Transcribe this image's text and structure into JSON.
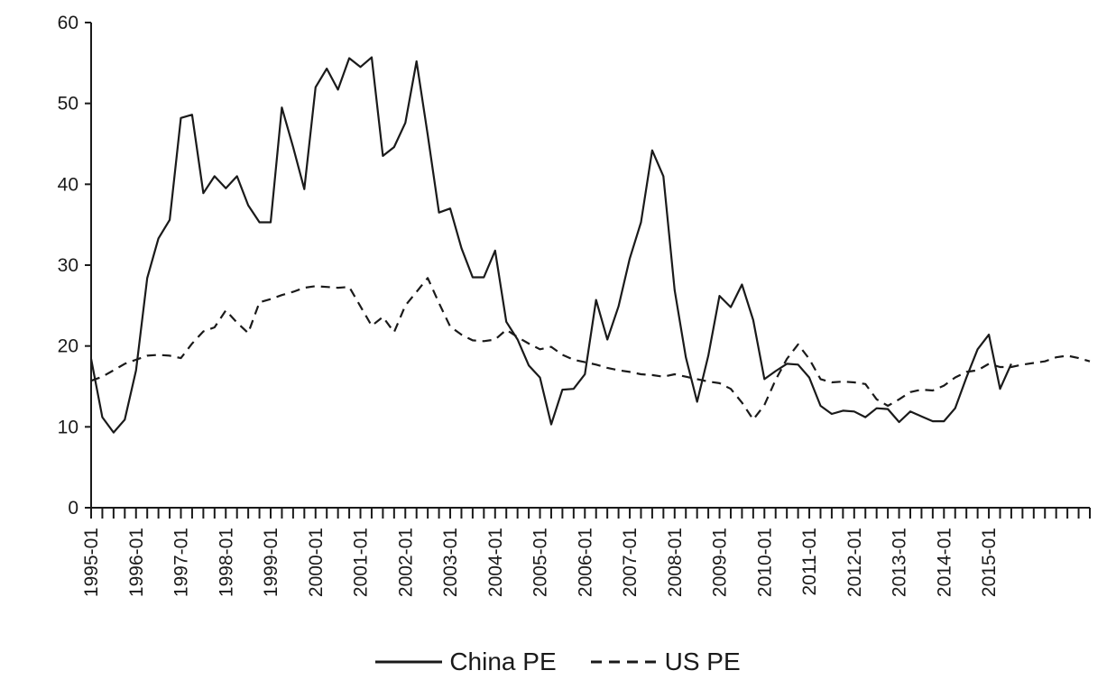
{
  "chart_data": {
    "type": "line",
    "title": "",
    "xlabel": "",
    "ylabel": "",
    "ylim": [
      0,
      60
    ],
    "yticks": [
      0,
      10,
      20,
      30,
      40,
      50,
      60
    ],
    "x_start": "1995-01",
    "x_step_months": 3,
    "xtick_labels": [
      "1995-01",
      "1996-01",
      "1997-01",
      "1998-01",
      "1999-01",
      "2000-01",
      "2001-01",
      "2002-01",
      "2003-01",
      "2004-01",
      "2005-01",
      "2006-01",
      "2007-01",
      "2008-01",
      "2009-01",
      "2010-01",
      "2011-01",
      "2012-01",
      "2013-01",
      "2014-01",
      "2015-01"
    ],
    "grid": false,
    "legend_position": "bottom",
    "series": [
      {
        "name": "China PE",
        "style": "solid",
        "color": "#1a1a1a",
        "values": [
          18.4,
          11.2,
          9.3,
          10.9,
          17.0,
          28.4,
          33.3,
          35.6,
          48.2,
          48.6,
          38.9,
          41.0,
          39.5,
          41.0,
          37.4,
          35.3,
          35.3,
          49.5,
          44.6,
          39.4,
          52.0,
          54.3,
          51.7,
          55.6,
          54.5,
          55.7,
          43.5,
          44.6,
          47.6,
          55.2,
          46.1,
          36.5,
          37.0,
          32.1,
          28.5,
          28.5,
          31.8,
          23.0,
          20.8,
          17.6,
          16.1,
          10.3,
          14.6,
          14.7,
          16.5,
          25.7,
          20.8,
          24.9,
          30.8,
          35.3,
          44.2,
          41.0,
          26.9,
          18.6,
          13.1,
          18.8,
          26.2,
          24.8,
          27.6,
          23.2,
          15.9,
          16.9,
          17.8,
          17.7,
          16.1,
          12.6,
          11.6,
          12.0,
          11.9,
          11.2,
          12.3,
          12.2,
          10.6,
          11.9,
          11.3,
          10.7,
          10.7,
          12.3,
          16.1,
          19.6,
          21.4,
          14.7,
          17.8
        ]
      },
      {
        "name": "US PE",
        "style": "dashed",
        "color": "#1a1a1a",
        "values": [
          15.7,
          16.2,
          17.0,
          17.8,
          18.3,
          18.8,
          18.9,
          18.8,
          18.5,
          20.3,
          21.8,
          22.3,
          24.4,
          22.9,
          21.6,
          25.4,
          25.8,
          26.3,
          26.7,
          27.2,
          27.4,
          27.3,
          27.2,
          27.3,
          24.9,
          22.5,
          23.6,
          21.7,
          25.0,
          26.7,
          28.4,
          25.3,
          22.4,
          21.4,
          20.7,
          20.6,
          20.8,
          22.0,
          21.1,
          20.3,
          19.6,
          19.9,
          18.9,
          18.3,
          18.0,
          17.7,
          17.3,
          17.0,
          16.8,
          16.5,
          16.4,
          16.2,
          16.5,
          16.2,
          15.9,
          15.6,
          15.4,
          14.7,
          13.0,
          10.9,
          12.7,
          15.8,
          18.4,
          20.2,
          18.4,
          15.9,
          15.5,
          15.6,
          15.5,
          15.3,
          13.4,
          12.6,
          13.4,
          14.3,
          14.6,
          14.5,
          15.1,
          16.1,
          16.8,
          17.0,
          17.8,
          17.4,
          17.4,
          17.7,
          17.9,
          18.1,
          18.6,
          18.8,
          18.5,
          18.1
        ]
      }
    ]
  }
}
